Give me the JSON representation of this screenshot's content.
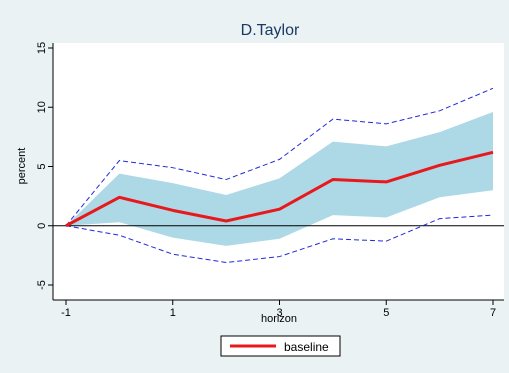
{
  "chart_data": {
    "type": "line",
    "title": "D.Taylor",
    "xlabel": "horizon",
    "ylabel": "percent",
    "x": [
      -1,
      0,
      1,
      2,
      3,
      4,
      5,
      6,
      7
    ],
    "xticks": [
      -1,
      1,
      3,
      5,
      7
    ],
    "yticks": [
      -5,
      0,
      5,
      10,
      15
    ],
    "xlim": [
      -1,
      7
    ],
    "ylim": [
      -5,
      15
    ],
    "series": [
      {
        "name": "baseline",
        "values": [
          0,
          2.4,
          1.3,
          0.4,
          1.4,
          3.9,
          3.7,
          5.1,
          6.2
        ]
      }
    ],
    "band_inner": {
      "upper": [
        0,
        4.4,
        3.6,
        2.6,
        4.0,
        7.1,
        6.7,
        7.9,
        9.6
      ],
      "lower": [
        0,
        0.3,
        -1.0,
        -1.7,
        -1.1,
        0.9,
        0.7,
        2.4,
        3.0
      ]
    },
    "band_outer": {
      "upper": [
        0,
        5.5,
        4.9,
        3.9,
        5.6,
        9.0,
        8.6,
        9.7,
        11.6
      ],
      "lower": [
        0,
        -0.8,
        -2.4,
        -3.1,
        -2.6,
        -1.1,
        -1.3,
        0.6,
        0.9
      ]
    },
    "zero_line": 0,
    "grid": false,
    "legend_position": "bottom-center",
    "colors": {
      "background": "#eaf2f3",
      "plot_bg": "#ffffff",
      "baseline": "#e8191c",
      "band_fill": "#add8e6",
      "band_outer": "#1f2bd9",
      "zero_line": "#000000",
      "title": "#1b3a63"
    }
  }
}
